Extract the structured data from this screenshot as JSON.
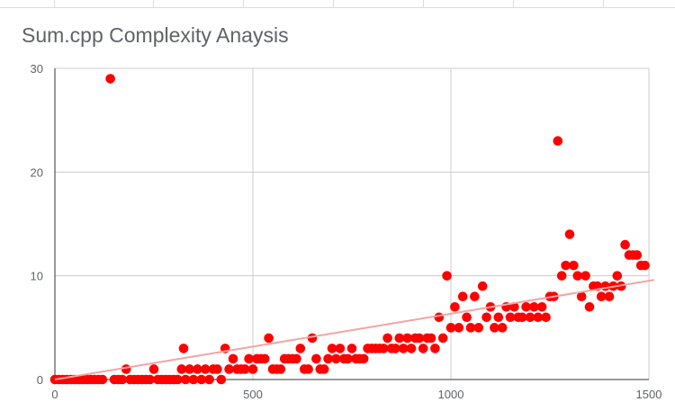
{
  "title": "Sum.cpp Complexity Anaysis",
  "colors": {
    "points": "#ff0000",
    "trendline": "#f4a3a3",
    "grid": "#cccccc",
    "axis": "#333333",
    "text": "#5f6368"
  },
  "chart_data": {
    "type": "scatter",
    "title": "Sum.cpp Complexity Anaysis",
    "xlabel": "",
    "ylabel": "",
    "xlim": [
      0,
      1500
    ],
    "ylim": [
      0,
      30
    ],
    "x_ticks": [
      "0",
      "500",
      "1000",
      "1500"
    ],
    "y_ticks": [
      "0",
      "10",
      "20",
      "30"
    ],
    "grid": true,
    "legend": "none",
    "trendline": {
      "type": "linear",
      "start": [
        0,
        0
      ],
      "end": [
        1500,
        9.6
      ]
    },
    "points": [
      [
        0,
        0
      ],
      [
        10,
        0
      ],
      [
        20,
        0
      ],
      [
        30,
        0
      ],
      [
        40,
        0
      ],
      [
        50,
        0
      ],
      [
        60,
        0
      ],
      [
        70,
        0
      ],
      [
        80,
        0
      ],
      [
        90,
        0
      ],
      [
        100,
        0
      ],
      [
        110,
        0
      ],
      [
        120,
        0
      ],
      [
        140,
        29
      ],
      [
        150,
        0
      ],
      [
        160,
        0
      ],
      [
        170,
        0
      ],
      [
        180,
        1
      ],
      [
        190,
        0
      ],
      [
        200,
        0
      ],
      [
        210,
        0
      ],
      [
        220,
        0
      ],
      [
        230,
        0
      ],
      [
        240,
        0
      ],
      [
        250,
        1
      ],
      [
        260,
        0
      ],
      [
        270,
        0
      ],
      [
        280,
        0
      ],
      [
        290,
        0
      ],
      [
        300,
        0
      ],
      [
        310,
        0
      ],
      [
        320,
        1
      ],
      [
        325,
        3
      ],
      [
        330,
        0
      ],
      [
        340,
        1
      ],
      [
        350,
        0
      ],
      [
        360,
        1
      ],
      [
        370,
        0
      ],
      [
        380,
        1
      ],
      [
        390,
        0
      ],
      [
        400,
        1
      ],
      [
        410,
        1
      ],
      [
        420,
        0
      ],
      [
        430,
        3
      ],
      [
        440,
        1
      ],
      [
        450,
        2
      ],
      [
        460,
        1
      ],
      [
        470,
        1
      ],
      [
        480,
        1
      ],
      [
        490,
        2
      ],
      [
        500,
        1
      ],
      [
        510,
        2
      ],
      [
        520,
        2
      ],
      [
        530,
        2
      ],
      [
        540,
        4
      ],
      [
        550,
        1
      ],
      [
        560,
        1
      ],
      [
        570,
        1
      ],
      [
        580,
        2
      ],
      [
        590,
        2
      ],
      [
        600,
        2
      ],
      [
        610,
        2
      ],
      [
        620,
        3
      ],
      [
        630,
        1
      ],
      [
        640,
        1
      ],
      [
        650,
        4
      ],
      [
        660,
        2
      ],
      [
        670,
        1
      ],
      [
        680,
        1
      ],
      [
        690,
        2
      ],
      [
        700,
        3
      ],
      [
        710,
        2
      ],
      [
        720,
        3
      ],
      [
        730,
        2
      ],
      [
        740,
        2
      ],
      [
        750,
        3
      ],
      [
        760,
        2
      ],
      [
        770,
        2
      ],
      [
        780,
        2
      ],
      [
        790,
        3
      ],
      [
        800,
        3
      ],
      [
        810,
        3
      ],
      [
        820,
        3
      ],
      [
        830,
        3
      ],
      [
        840,
        4
      ],
      [
        850,
        3
      ],
      [
        860,
        3
      ],
      [
        870,
        4
      ],
      [
        880,
        3
      ],
      [
        890,
        4
      ],
      [
        900,
        3
      ],
      [
        910,
        4
      ],
      [
        920,
        4
      ],
      [
        930,
        3
      ],
      [
        940,
        4
      ],
      [
        950,
        4
      ],
      [
        960,
        3
      ],
      [
        970,
        6
      ],
      [
        980,
        4
      ],
      [
        990,
        10
      ],
      [
        1000,
        5
      ],
      [
        1010,
        7
      ],
      [
        1020,
        5
      ],
      [
        1030,
        8
      ],
      [
        1040,
        6
      ],
      [
        1050,
        5
      ],
      [
        1060,
        8
      ],
      [
        1070,
        5
      ],
      [
        1080,
        9
      ],
      [
        1090,
        6
      ],
      [
        1100,
        7
      ],
      [
        1110,
        5
      ],
      [
        1120,
        6
      ],
      [
        1130,
        5
      ],
      [
        1140,
        7
      ],
      [
        1150,
        6
      ],
      [
        1160,
        7
      ],
      [
        1170,
        6
      ],
      [
        1180,
        6
      ],
      [
        1190,
        7
      ],
      [
        1200,
        6
      ],
      [
        1210,
        7
      ],
      [
        1220,
        6
      ],
      [
        1230,
        7
      ],
      [
        1240,
        6
      ],
      [
        1250,
        8
      ],
      [
        1260,
        8
      ],
      [
        1270,
        23
      ],
      [
        1280,
        10
      ],
      [
        1290,
        11
      ],
      [
        1300,
        14
      ],
      [
        1310,
        11
      ],
      [
        1320,
        10
      ],
      [
        1330,
        8
      ],
      [
        1340,
        10
      ],
      [
        1350,
        7
      ],
      [
        1360,
        9
      ],
      [
        1370,
        9
      ],
      [
        1380,
        8
      ],
      [
        1390,
        9
      ],
      [
        1400,
        8
      ],
      [
        1410,
        9
      ],
      [
        1420,
        10
      ],
      [
        1430,
        9
      ],
      [
        1440,
        13
      ],
      [
        1450,
        12
      ],
      [
        1460,
        12
      ],
      [
        1470,
        12
      ],
      [
        1480,
        11
      ],
      [
        1490,
        11
      ]
    ]
  }
}
